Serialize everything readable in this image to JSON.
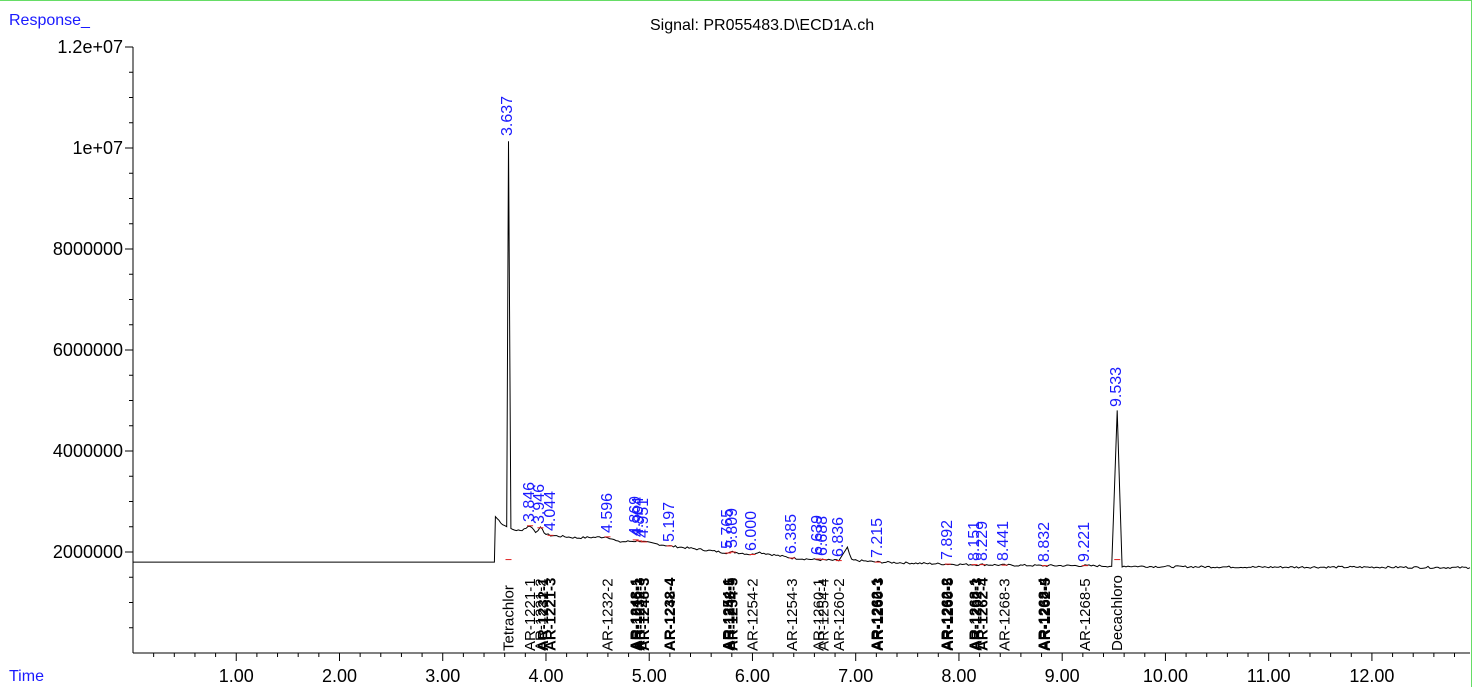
{
  "chart_data": {
    "type": "line",
    "title": "Signal: PR055483.D\\ECD1A.ch",
    "xlabel": "Time",
    "ylabel": "Response_",
    "xlim": [
      0,
      12.95
    ],
    "ylim": [
      0,
      12000000
    ],
    "xticks": [
      "1.00",
      "2.00",
      "3.00",
      "4.00",
      "5.00",
      "6.00",
      "7.00",
      "8.00",
      "9.00",
      "10.00",
      "11.00",
      "12.00"
    ],
    "yticks": [
      "2000000",
      "4000000",
      "6000000",
      "8000000",
      "1e+07",
      "1.2e+07"
    ],
    "trace": [
      [
        0.0,
        1800000
      ],
      [
        3.5,
        1800000
      ],
      [
        3.51,
        2700000
      ],
      [
        3.58,
        2550000
      ],
      [
        3.62,
        2500000
      ],
      [
        3.637,
        10150000
      ],
      [
        3.66,
        2450000
      ],
      [
        3.75,
        2420000
      ],
      [
        3.846,
        2520000
      ],
      [
        3.9,
        2400000
      ],
      [
        3.946,
        2480000
      ],
      [
        4.0,
        2350000
      ],
      [
        4.044,
        2330000
      ],
      [
        4.3,
        2280000
      ],
      [
        4.596,
        2300000
      ],
      [
        4.7,
        2200000
      ],
      [
        4.904,
        2220000
      ],
      [
        5.0,
        2180000
      ],
      [
        5.197,
        2120000
      ],
      [
        5.5,
        2050000
      ],
      [
        5.765,
        1980000
      ],
      [
        5.809,
        2000000
      ],
      [
        6.0,
        1950000
      ],
      [
        6.05,
        2000000
      ],
      [
        6.13,
        1970000
      ],
      [
        6.385,
        1880000
      ],
      [
        6.6,
        1850000
      ],
      [
        6.836,
        1830000
      ],
      [
        6.92,
        2080000
      ],
      [
        6.96,
        1840000
      ],
      [
        7.215,
        1800000
      ],
      [
        7.892,
        1760000
      ],
      [
        8.151,
        1750000
      ],
      [
        8.229,
        1750000
      ],
      [
        8.441,
        1740000
      ],
      [
        8.832,
        1730000
      ],
      [
        9.221,
        1730000
      ],
      [
        9.48,
        1720000
      ],
      [
        9.533,
        4800000
      ],
      [
        9.58,
        1720000
      ],
      [
        10.0,
        1710000
      ],
      [
        11.0,
        1700000
      ],
      [
        12.0,
        1700000
      ],
      [
        12.95,
        1690000
      ]
    ],
    "peaks": [
      {
        "time": "3.637",
        "x": 3.637,
        "y": 10150000
      },
      {
        "time": "3.846",
        "x": 3.846,
        "y": 2520000
      },
      {
        "time": "3.946",
        "x": 3.946,
        "y": 2480000
      },
      {
        "time": "4.044",
        "x": 4.044,
        "y": 2330000
      },
      {
        "time": "4.596",
        "x": 4.596,
        "y": 2300000
      },
      {
        "time": "4.869",
        "x": 4.869,
        "y": 2240000
      },
      {
        "time": "4.904",
        "x": 4.904,
        "y": 2220000
      },
      {
        "time": "4.951",
        "x": 4.951,
        "y": 2200000
      },
      {
        "time": "5.197",
        "x": 5.197,
        "y": 2120000
      },
      {
        "time": "5.765",
        "x": 5.765,
        "y": 1980000
      },
      {
        "time": "5.809",
        "x": 5.809,
        "y": 2000000
      },
      {
        "time": "6.000",
        "x": 6.0,
        "y": 1950000
      },
      {
        "time": "6.385",
        "x": 6.385,
        "y": 1880000
      },
      {
        "time": "6.639",
        "x": 6.639,
        "y": 1860000
      },
      {
        "time": "6.688",
        "x": 6.688,
        "y": 1850000
      },
      {
        "time": "6.836",
        "x": 6.836,
        "y": 1830000
      },
      {
        "time": "7.215",
        "x": 7.215,
        "y": 1800000
      },
      {
        "time": "7.892",
        "x": 7.892,
        "y": 1760000
      },
      {
        "time": "8.151",
        "x": 8.151,
        "y": 1750000
      },
      {
        "time": "8.229",
        "x": 8.229,
        "y": 1750000
      },
      {
        "time": "8.441",
        "x": 8.441,
        "y": 1740000
      },
      {
        "time": "8.832",
        "x": 8.832,
        "y": 1730000
      },
      {
        "time": "9.221",
        "x": 9.221,
        "y": 1730000
      },
      {
        "time": "9.533",
        "x": 9.533,
        "y": 4800000
      }
    ],
    "compounds": [
      {
        "name": "Tetrachlor",
        "x": 3.637,
        "bold": false
      },
      {
        "name": "AR-1221-1",
        "x": 3.846,
        "bold": false
      },
      {
        "name": "AR-1221-2",
        "x": 3.946,
        "bold": false
      },
      {
        "name": "AR-1232-1",
        "x": 3.97,
        "bold": true
      },
      {
        "name": "AR-1221-3",
        "x": 4.044,
        "bold": true
      },
      {
        "name": "AR-1232-2",
        "x": 4.596,
        "bold": false
      },
      {
        "name": "AR-1248-1",
        "x": 4.869,
        "bold": true
      },
      {
        "name": "AR-1016-1",
        "x": 4.88,
        "bold": true
      },
      {
        "name": "AR-1232-3",
        "x": 4.904,
        "bold": true
      },
      {
        "name": "AR-1248-3",
        "x": 4.951,
        "bold": true
      },
      {
        "name": "AR-1232-4",
        "x": 5.197,
        "bold": true
      },
      {
        "name": "AR-1248-4",
        "x": 5.2,
        "bold": true
      },
      {
        "name": "AR-1254-1",
        "x": 5.765,
        "bold": true
      },
      {
        "name": "AR-1248-5",
        "x": 5.78,
        "bold": true
      },
      {
        "name": "AR-1254-5",
        "x": 5.809,
        "bold": true
      },
      {
        "name": "AR-1254-2",
        "x": 6.0,
        "bold": false
      },
      {
        "name": "AR-1254-3",
        "x": 6.385,
        "bold": false
      },
      {
        "name": "AR-1260-1",
        "x": 6.639,
        "bold": false
      },
      {
        "name": "AR-1254-4",
        "x": 6.688,
        "bold": false
      },
      {
        "name": "AR-1260-2",
        "x": 6.836,
        "bold": false
      },
      {
        "name": "AR-1262-1",
        "x": 7.2,
        "bold": true
      },
      {
        "name": "AR-1260-3",
        "x": 7.215,
        "bold": true
      },
      {
        "name": "AR-1262-2",
        "x": 7.88,
        "bold": true
      },
      {
        "name": "AR-1260-5",
        "x": 7.892,
        "bold": true
      },
      {
        "name": "AR-1268-1",
        "x": 8.151,
        "bold": true
      },
      {
        "name": "AR-1262-3",
        "x": 8.17,
        "bold": true
      },
      {
        "name": "AR-1262-4",
        "x": 8.229,
        "bold": true
      },
      {
        "name": "AR-1268-3",
        "x": 8.441,
        "bold": false
      },
      {
        "name": "AR-1268-4",
        "x": 8.82,
        "bold": true
      },
      {
        "name": "AR-1262-5",
        "x": 8.832,
        "bold": true
      },
      {
        "name": "AR-1268-5",
        "x": 9.221,
        "bold": false
      },
      {
        "name": "Decachloro",
        "x": 9.533,
        "bold": false
      }
    ]
  }
}
